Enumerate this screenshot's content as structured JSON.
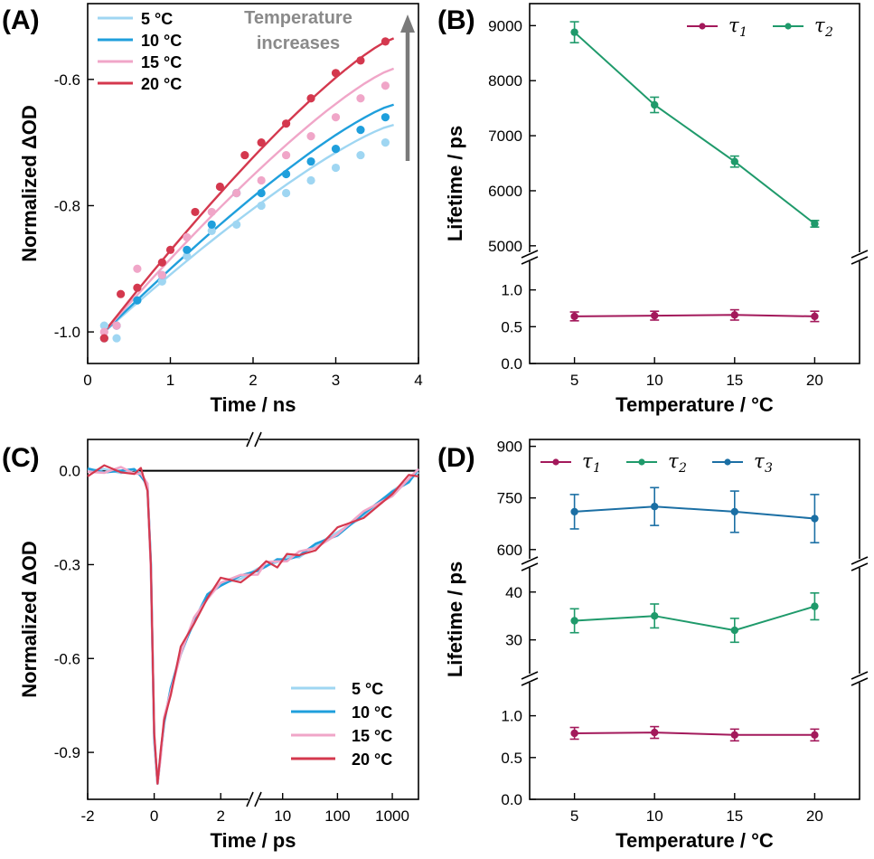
{
  "chart_data": [
    {
      "panel": "(A)",
      "type": "scatter",
      "xlabel": "Time / ns",
      "ylabel": "Normalized ΔOD",
      "xlim": [
        0,
        4
      ],
      "ylim": [
        -1.05,
        -0.48
      ],
      "xticks": [
        0,
        1,
        2,
        3,
        4
      ],
      "yticks": [
        -1.0,
        -0.8,
        -0.6
      ],
      "ytick_labels": [
        "-1.0",
        "-0.8",
        "-0.6"
      ],
      "annotation": [
        "Temperature",
        "increases"
      ],
      "legend_position": "top-left",
      "series": [
        {
          "name": "5 °C",
          "color": "#9fd6f2",
          "x": [
            0.2,
            0.35,
            0.6,
            0.9,
            1.2,
            1.5,
            1.8,
            2.1,
            2.4,
            2.7,
            3.0,
            3.3,
            3.6
          ],
          "y": [
            -0.99,
            -1.01,
            -0.95,
            -0.92,
            -0.88,
            -0.84,
            -0.83,
            -0.8,
            -0.78,
            -0.76,
            -0.74,
            -0.72,
            -0.7
          ],
          "fit_y0": -1.0,
          "fit_y1": -0.672
        },
        {
          "name": "10 °C",
          "color": "#1f9fdc",
          "x": [
            0.2,
            0.35,
            0.6,
            0.9,
            1.2,
            1.5,
            1.8,
            2.1,
            2.4,
            2.7,
            3.0,
            3.3,
            3.6
          ],
          "y": [
            -1.01,
            -0.99,
            -0.95,
            -0.91,
            -0.87,
            -0.83,
            -0.78,
            -0.78,
            -0.75,
            -0.73,
            -0.71,
            -0.68,
            -0.66
          ],
          "fit_y0": -1.0,
          "fit_y1": -0.64
        },
        {
          "name": "15 °C",
          "color": "#f0a6c8",
          "x": [
            0.2,
            0.35,
            0.6,
            0.9,
            1.2,
            1.5,
            1.8,
            2.1,
            2.4,
            2.7,
            3.0,
            3.3,
            3.6
          ],
          "y": [
            -1.0,
            -0.99,
            -0.9,
            -0.91,
            -0.85,
            -0.81,
            -0.78,
            -0.76,
            -0.72,
            -0.69,
            -0.66,
            -0.63,
            -0.61
          ],
          "fit_y0": -1.0,
          "fit_y1": -0.583
        },
        {
          "name": "20 °C",
          "color": "#d4384e",
          "x": [
            0.2,
            0.4,
            0.6,
            0.9,
            1.0,
            1.3,
            1.6,
            1.9,
            2.1,
            2.4,
            2.7,
            3.0,
            3.3,
            3.6
          ],
          "y": [
            -1.01,
            -0.94,
            -0.93,
            -0.89,
            -0.87,
            -0.81,
            -0.77,
            -0.72,
            -0.7,
            -0.67,
            -0.63,
            -0.59,
            -0.57,
            -0.54
          ],
          "fit_y0": -1.0,
          "fit_y1": -0.535
        }
      ]
    },
    {
      "panel": "(B)",
      "type": "line",
      "xlabel": "Temperature / °C",
      "ylabel": "Lifetime / ps",
      "x": [
        5,
        10,
        15,
        20
      ],
      "xticks": [
        5,
        10,
        15,
        20
      ],
      "broken_y_axis": true,
      "segments": [
        {
          "ylim": [
            4800,
            9400
          ],
          "yticks": [
            5000,
            6000,
            7000,
            8000,
            9000
          ]
        },
        {
          "ylim": [
            0,
            1.45
          ],
          "yticks": [
            0.0,
            0.5,
            1.0
          ],
          "ytick_labels": [
            "0.0",
            "0.5",
            "1.0"
          ]
        }
      ],
      "legend_position": "top-right",
      "series": [
        {
          "name": "τ",
          "sub": "1",
          "color": "#a3195b",
          "segment": 1,
          "values": [
            0.64,
            0.65,
            0.66,
            0.64
          ],
          "errors": [
            0.06,
            0.06,
            0.07,
            0.07
          ]
        },
        {
          "name": "τ",
          "sub": "2",
          "color": "#1f9a6b",
          "segment": 0,
          "values": [
            8880,
            7560,
            6530,
            5400
          ],
          "errors": [
            190,
            140,
            100,
            60
          ]
        }
      ]
    },
    {
      "panel": "(C)",
      "type": "line",
      "xlabel": "Time / ps",
      "ylabel": "Normalized ΔOD",
      "broken_x_axis": true,
      "x_segments": [
        {
          "scale": "linear",
          "xlim": [
            -2,
            3
          ],
          "xticks": [
            -2,
            0,
            2
          ],
          "xtick_labels": [
            "-2",
            "0",
            "2"
          ]
        },
        {
          "scale": "log",
          "xlim": [
            3,
            3000
          ],
          "xticks": [
            10,
            100,
            1000
          ],
          "xtick_labels": [
            "10",
            "100",
            "1000"
          ]
        }
      ],
      "ylim": [
        -1.05,
        0.1
      ],
      "yticks": [
        0.0,
        -0.3,
        -0.6,
        -0.9
      ],
      "ytick_labels": [
        "0.0",
        "-0.3",
        "-0.6",
        "-0.9"
      ],
      "zero_line": true,
      "legend_position": "bottom-right",
      "series": [
        {
          "name": "5 °C",
          "color": "#9fd6f2"
        },
        {
          "name": "10 °C",
          "color": "#1f9fdc"
        },
        {
          "name": "15 °C",
          "color": "#f0a6c8"
        },
        {
          "name": "20 °C",
          "color": "#d4384e"
        }
      ],
      "trace_x": [
        -2,
        -1.5,
        -1,
        -0.6,
        -0.4,
        -0.2,
        -0.1,
        0,
        0.1,
        0.2,
        0.3,
        0.5,
        0.8,
        1.2,
        1.6,
        2.0,
        2.6,
        3.5,
        5,
        8,
        12,
        20,
        40,
        100,
        300,
        1000,
        2000,
        3000
      ],
      "trace_y": [
        0.0,
        0.0,
        0.0,
        0.0,
        -0.01,
        -0.05,
        -0.3,
        -0.85,
        -1.0,
        -0.9,
        -0.8,
        -0.7,
        -0.58,
        -0.48,
        -0.4,
        -0.36,
        -0.34,
        -0.32,
        -0.3,
        -0.29,
        -0.28,
        -0.27,
        -0.24,
        -0.2,
        -0.14,
        -0.07,
        -0.03,
        0.0
      ]
    },
    {
      "panel": "(D)",
      "type": "line",
      "xlabel": "Temperature / °C",
      "ylabel": "Lifetime / ps",
      "x": [
        5,
        10,
        15,
        20
      ],
      "xticks": [
        5,
        10,
        15,
        20
      ],
      "broken_y_axis": true,
      "segments": [
        {
          "ylim": [
            560,
            920
          ],
          "yticks": [
            600,
            750,
            900
          ]
        },
        {
          "ylim": [
            22,
            46
          ],
          "yticks": [
            30,
            40
          ]
        },
        {
          "ylim": [
            0,
            1.45
          ],
          "yticks": [
            0.0,
            0.5,
            1.0
          ],
          "ytick_labels": [
            "0.0",
            "0.5",
            "1.0"
          ]
        }
      ],
      "legend_position": "top",
      "series": [
        {
          "name": "τ",
          "sub": "1",
          "color": "#a3195b",
          "segment": 2,
          "values": [
            0.79,
            0.8,
            0.77,
            0.77
          ],
          "errors": [
            0.07,
            0.07,
            0.07,
            0.07
          ]
        },
        {
          "name": "τ",
          "sub": "2",
          "color": "#1f9a6b",
          "segment": 1,
          "values": [
            34,
            35,
            32,
            37
          ],
          "errors": [
            2.5,
            2.5,
            2.5,
            2.8
          ]
        },
        {
          "name": "τ",
          "sub": "3",
          "color": "#1b6fa4",
          "segment": 0,
          "values": [
            710,
            725,
            710,
            690
          ],
          "errors": [
            50,
            55,
            60,
            70
          ]
        }
      ]
    }
  ]
}
